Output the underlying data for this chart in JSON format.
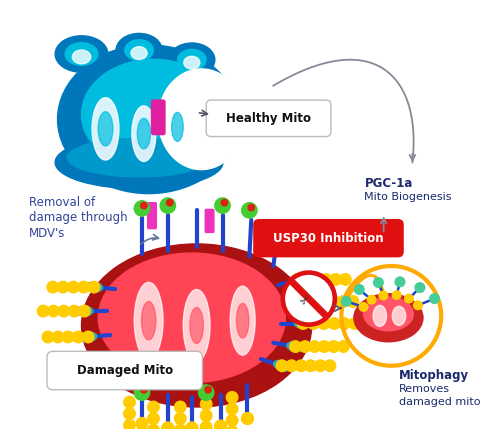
{
  "bg_color": "#ffffff",
  "healthy_mito_label": "Healthy Mito",
  "damaged_mito_label": "Damaged Mito",
  "usp30_label": "USP30 Inhibition",
  "pgc1a_line1": "PGC-1a",
  "pgc1a_line2": "Mito Biogenesis",
  "mitophagy_line1": "Mitophagy",
  "mitophagy_line2": "Removes",
  "mitophagy_line3": "damaged mito",
  "removal_line1": "Removal of",
  "removal_line2": "damage through",
  "removal_line3": "MDV's",
  "label_text_color": "#1a2a6c",
  "usp30_bg": "#e01010",
  "usp30_text_color": "#ffffff",
  "figsize": [
    4.94,
    4.38
  ],
  "dpi": 100
}
